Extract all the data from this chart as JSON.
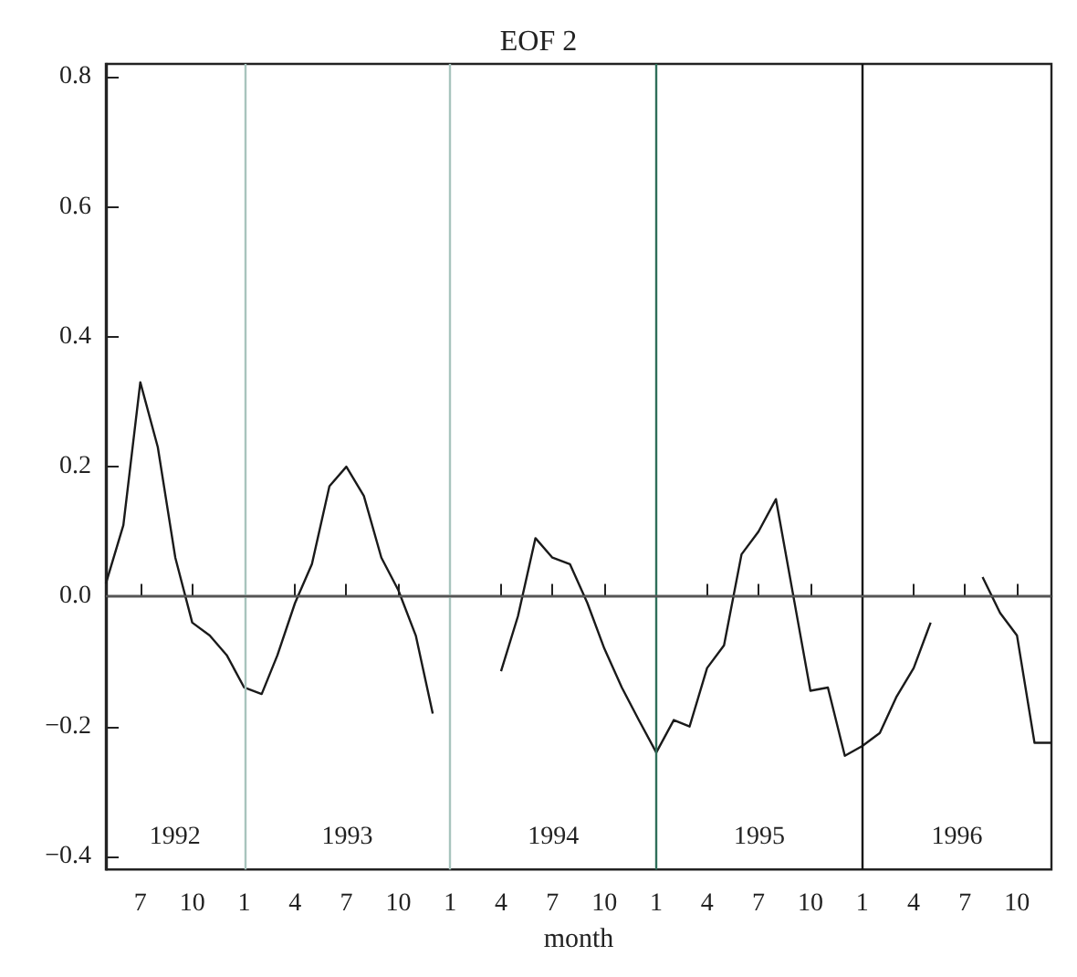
{
  "chart_data": {
    "type": "line",
    "title": "EOF 2",
    "xlabel": "month",
    "x": [
      "1992-05",
      "1992-06",
      "1992-07",
      "1992-08",
      "1992-09",
      "1992-10",
      "1992-11",
      "1992-12",
      "1993-01",
      "1993-02",
      "1993-03",
      "1993-04",
      "1993-05",
      "1993-06",
      "1993-07",
      "1993-08",
      "1993-09",
      "1993-10",
      "1993-11",
      "1993-12",
      "1994-01",
      "1994-02",
      "1994-03",
      "1994-04",
      "1994-05",
      "1994-06",
      "1994-07",
      "1994-08",
      "1994-09",
      "1994-10",
      "1994-11",
      "1994-12",
      "1995-01",
      "1995-02",
      "1995-03",
      "1995-04",
      "1995-05",
      "1995-06",
      "1995-07",
      "1995-08",
      "1995-09",
      "1995-10",
      "1995-11",
      "1995-12",
      "1996-01",
      "1996-02",
      "1996-03",
      "1996-04",
      "1996-05",
      "1996-06",
      "1996-07",
      "1996-08",
      "1996-09",
      "1996-10",
      "1996-11",
      "1996-12"
    ],
    "series": [
      {
        "color": "#1a1a1a",
        "values": [
          0.02,
          0.11,
          0.33,
          0.23,
          0.06,
          -0.04,
          -0.06,
          -0.09,
          -0.14,
          -0.15,
          -0.09,
          -0.01,
          0.05,
          0.17,
          0.2,
          0.155,
          0.06,
          0.01,
          -0.06,
          -0.18,
          null,
          null,
          null,
          -0.115,
          -0.03,
          0.09,
          0.06,
          0.05,
          -0.01,
          -0.08,
          -0.14,
          -0.19,
          -0.24,
          -0.19,
          -0.2,
          -0.11,
          -0.075,
          0.065,
          0.1,
          0.15,
          0.0,
          -0.145,
          -0.14,
          -0.245,
          -0.23,
          -0.21,
          -0.155,
          -0.11,
          -0.04,
          null,
          null,
          0.03,
          -0.025,
          -0.06,
          -0.225,
          -0.225
        ]
      }
    ],
    "xlim": [
      "1992-05",
      "1996-12"
    ],
    "xticks": [
      {
        "value": "1992-07",
        "label": "7"
      },
      {
        "value": "1992-10",
        "label": "10"
      },
      {
        "value": "1993-01",
        "label": "1"
      },
      {
        "value": "1993-04",
        "label": "4"
      },
      {
        "value": "1993-07",
        "label": "7"
      },
      {
        "value": "1993-10",
        "label": "10"
      },
      {
        "value": "1994-01",
        "label": "1"
      },
      {
        "value": "1994-04",
        "label": "4"
      },
      {
        "value": "1994-07",
        "label": "7"
      },
      {
        "value": "1994-10",
        "label": "10"
      },
      {
        "value": "1995-01",
        "label": "1"
      },
      {
        "value": "1995-04",
        "label": "4"
      },
      {
        "value": "1995-07",
        "label": "7"
      },
      {
        "value": "1995-10",
        "label": "10"
      },
      {
        "value": "1996-01",
        "label": "1"
      },
      {
        "value": "1996-04",
        "label": "4"
      },
      {
        "value": "1996-07",
        "label": "7"
      },
      {
        "value": "1996-10",
        "label": "10"
      }
    ],
    "ylim": [
      -0.42,
      0.82
    ],
    "yticks": [
      {
        "value": -0.4,
        "label": "−0.4"
      },
      {
        "value": -0.2,
        "label": "−0.2"
      },
      {
        "value": 0,
        "label": "0.0"
      },
      {
        "value": 0.2,
        "label": "0.2"
      },
      {
        "value": 0.4,
        "label": "0.4"
      },
      {
        "value": 0.6,
        "label": "0.6"
      },
      {
        "value": 0.8,
        "label": "0.8"
      }
    ],
    "ref_lines": [
      {
        "axis": "y",
        "value": 0,
        "color": "#555555"
      },
      {
        "axis": "x",
        "value": "1993-01",
        "color": "#a8c4bd"
      },
      {
        "axis": "x",
        "value": "1994-01",
        "color": "#a8c4bd"
      },
      {
        "axis": "x",
        "value": "1995-01",
        "color": "#2f6f5a"
      },
      {
        "axis": "x",
        "value": "1996-01",
        "color": "#111111"
      }
    ],
    "annotations": [
      "1992",
      "1993",
      "1994",
      "1995",
      "1996"
    ],
    "grid": false
  }
}
